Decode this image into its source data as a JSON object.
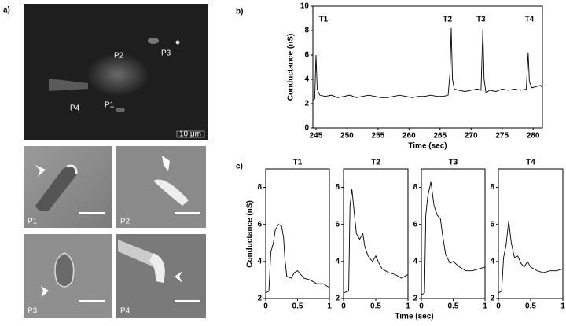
{
  "panel_labels": [
    "a)",
    "b)",
    "c)"
  ],
  "micrograph": {
    "labels": [
      "P2",
      "P3",
      "P4",
      "P1"
    ],
    "scale": "10 μm"
  },
  "insets": [
    "P1",
    "P2",
    "P3",
    "P4"
  ],
  "chart_data": [
    {
      "type": "line",
      "ylabel": "Conductance (nS)",
      "xlabel": "Time (sec)",
      "color": "#000000",
      "xlim": [
        244.5,
        281.5
      ],
      "xticks": [
        245,
        250,
        255,
        260,
        265,
        270,
        275,
        280
      ],
      "ylim": [
        0,
        10
      ],
      "yticks": [
        0,
        2,
        4,
        6,
        8,
        10
      ],
      "annotations": [
        {
          "text": "T1",
          "x": 246.2
        },
        {
          "text": "T2",
          "x": 266.2
        },
        {
          "text": "T3",
          "x": 271.6
        },
        {
          "text": "T4",
          "x": 279.4
        }
      ],
      "x": [
        244.5,
        244.8,
        245.0,
        245.2,
        245.6,
        246.5,
        247.5,
        248.5,
        249.5,
        250.5,
        251.5,
        252.5,
        253.5,
        254.5,
        255.5,
        256.5,
        257.5,
        258.5,
        259.5,
        260.5,
        261.5,
        262.5,
        263.5,
        264.5,
        265.5,
        266.3,
        266.6,
        266.8,
        267.0,
        267.3,
        268,
        269,
        270,
        271,
        271.6,
        271.9,
        272.1,
        272.4,
        273,
        274,
        275,
        276,
        277,
        278,
        278.9,
        279.2,
        279.4,
        279.8,
        280.5,
        281.2,
        281.5
      ],
      "values": [
        2.3,
        2.4,
        6.0,
        3.2,
        2.7,
        2.6,
        2.7,
        2.5,
        2.6,
        2.7,
        2.5,
        2.6,
        2.7,
        2.6,
        2.5,
        2.5,
        2.6,
        2.7,
        2.6,
        2.5,
        2.6,
        2.6,
        2.7,
        2.6,
        2.6,
        2.7,
        4.5,
        8.2,
        4.0,
        3.2,
        3.1,
        3.0,
        3.1,
        3.2,
        3.1,
        8.1,
        4.0,
        2.9,
        3.1,
        3.0,
        3.2,
        3.1,
        3.2,
        3.1,
        3.2,
        6.2,
        3.8,
        3.3,
        3.4,
        3.5,
        3.3
      ]
    },
    {
      "type": "line",
      "title": "T1",
      "ylabel": "Conductance (nS)",
      "xlabel": "Time (sec)",
      "color": "#000000",
      "xlim": [
        0,
        1
      ],
      "xticks": [
        0,
        0.5,
        1
      ],
      "ylim": [
        2,
        9
      ],
      "yticks": [
        2,
        4,
        6,
        8
      ],
      "x": [
        0,
        0.05,
        0.08,
        0.12,
        0.15,
        0.2,
        0.25,
        0.28,
        0.3,
        0.33,
        0.4,
        0.45,
        0.5,
        0.55,
        0.6,
        0.7,
        0.8,
        0.9,
        1.0
      ],
      "values": [
        2.3,
        2.4,
        4.5,
        5.0,
        5.7,
        6.0,
        5.9,
        5.3,
        4.2,
        3.2,
        3.1,
        3.4,
        3.5,
        3.3,
        3.1,
        3.0,
        2.8,
        2.8,
        2.6
      ]
    },
    {
      "type": "line",
      "title": "T2",
      "color": "#000000",
      "xlim": [
        0,
        1
      ],
      "xticks": [
        0,
        0.5,
        1
      ],
      "ylim": [
        2,
        9
      ],
      "yticks": [
        2,
        4,
        6,
        8
      ],
      "x": [
        0,
        0.08,
        0.1,
        0.13,
        0.17,
        0.2,
        0.25,
        0.3,
        0.33,
        0.38,
        0.45,
        0.5,
        0.55,
        0.6,
        0.7,
        0.8,
        0.9,
        1.0
      ],
      "values": [
        2.3,
        2.4,
        7.0,
        7.9,
        6.5,
        5.5,
        5.2,
        5.5,
        4.8,
        4.3,
        4.0,
        4.3,
        3.9,
        3.6,
        3.4,
        3.3,
        3.1,
        3.3
      ]
    },
    {
      "type": "line",
      "title": "T3",
      "color": "#000000",
      "xlim": [
        0,
        1
      ],
      "xticks": [
        0,
        0.5,
        1
      ],
      "ylim": [
        2,
        9
      ],
      "yticks": [
        2,
        4,
        6,
        8
      ],
      "x": [
        0,
        0.05,
        0.07,
        0.1,
        0.15,
        0.2,
        0.25,
        0.3,
        0.33,
        0.38,
        0.45,
        0.5,
        0.6,
        0.7,
        0.8,
        0.9,
        1.0
      ],
      "values": [
        2.2,
        2.3,
        6.5,
        7.5,
        8.3,
        7.0,
        6.5,
        6.3,
        5.5,
        4.4,
        3.9,
        4.0,
        3.7,
        3.5,
        3.5,
        3.6,
        3.7
      ]
    },
    {
      "type": "line",
      "title": "T4",
      "color": "#000000",
      "xlim": [
        0,
        1
      ],
      "xticks": [
        0,
        0.5,
        1
      ],
      "ylim": [
        2,
        9
      ],
      "yticks": [
        2,
        4,
        6,
        8
      ],
      "x": [
        0,
        0.05,
        0.08,
        0.12,
        0.16,
        0.2,
        0.25,
        0.3,
        0.35,
        0.4,
        0.45,
        0.5,
        0.6,
        0.7,
        0.8,
        0.9,
        1.0
      ],
      "values": [
        2.3,
        2.4,
        4.2,
        4.9,
        6.2,
        5.0,
        4.2,
        4.3,
        3.9,
        3.7,
        4.0,
        3.7,
        3.5,
        3.4,
        3.5,
        3.5,
        3.6
      ]
    }
  ]
}
